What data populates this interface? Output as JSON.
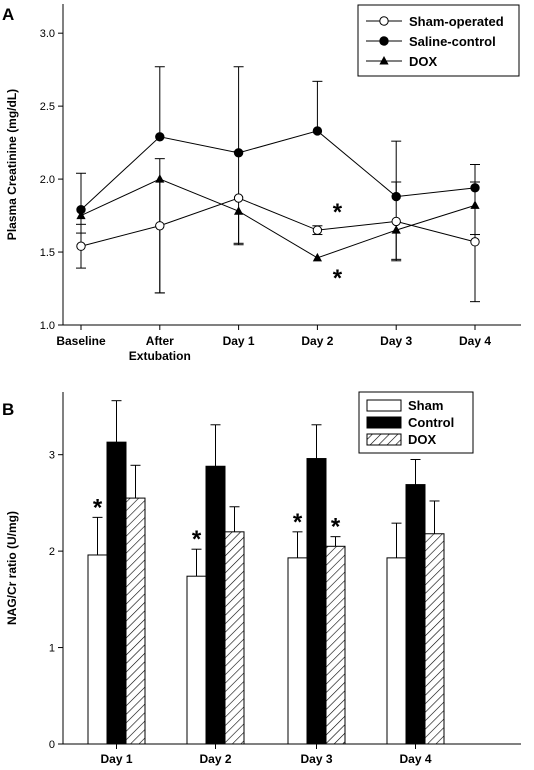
{
  "panels": [
    {
      "label": "A",
      "chart_data": {
        "type": "line",
        "title": "",
        "xlabel": "",
        "ylabel": "Plasma Creatinine (mg/dL)",
        "ylim": [
          1.0,
          3.2
        ],
        "yticks": [
          1.0,
          1.5,
          2.0,
          2.5,
          3.0
        ],
        "ytick_labels": [
          "1.0",
          "1.5",
          "2.0",
          "2.5",
          "3.0"
        ],
        "categories": [
          [
            "Baseline"
          ],
          [
            "After",
            "Extubation"
          ],
          [
            "Day 1"
          ],
          [
            "Day 2"
          ],
          [
            "Day 3"
          ],
          [
            "Day 4"
          ]
        ],
        "grid": false,
        "legend_position": "top-right",
        "series": [
          {
            "name": "Sham-operated",
            "marker": "circle-open",
            "values": [
              1.54,
              1.68,
              1.87,
              1.65,
              1.71,
              1.57
            ],
            "errors": [
              0.15,
              0.46,
              0.32,
              0.03,
              0.27,
              0.41
            ],
            "error_dir": "both"
          },
          {
            "name": "Saline-control",
            "marker": "circle-filled",
            "values": [
              1.79,
              2.29,
              2.18,
              2.33,
              1.88,
              1.94
            ],
            "errors": [
              0.25,
              0.48,
              0.59,
              0.34,
              0.38,
              0.16
            ],
            "error_dir": "up"
          },
          {
            "name": "DOX",
            "marker": "triangle-filled",
            "values": [
              1.75,
              2.0,
              1.78,
              1.46,
              1.65,
              1.82
            ],
            "errors": [
              0.12,
              0.78,
              0.22,
              0.0,
              0.2,
              0.2
            ],
            "error_dir": "down"
          }
        ],
        "annotations": [
          {
            "text": "*",
            "x_index": 3,
            "y": 1.78
          },
          {
            "text": "*",
            "x_index": 3,
            "y": 1.33
          }
        ]
      }
    },
    {
      "label": "B",
      "chart_data": {
        "type": "bar",
        "title": "",
        "xlabel": "",
        "ylabel": "NAG/Cr ratio (U/mg)",
        "ylim": [
          0,
          3.65
        ],
        "yticks": [
          0,
          1,
          2,
          3
        ],
        "ytick_labels": [
          "0",
          "1",
          "2",
          "3"
        ],
        "categories": [
          "Day 1",
          "Day 2",
          "Day 3",
          "Day 4"
        ],
        "grid": false,
        "legend_position": "top-right",
        "series": [
          {
            "name": "Sham",
            "fill": "white",
            "values": [
              1.96,
              1.74,
              1.93,
              1.93
            ],
            "errors": [
              0.39,
              0.28,
              0.27,
              0.36
            ]
          },
          {
            "name": "Control",
            "fill": "black",
            "values": [
              3.13,
              2.88,
              2.96,
              2.69
            ],
            "errors": [
              0.43,
              0.43,
              0.35,
              0.26
            ]
          },
          {
            "name": "DOX",
            "fill": "hatch",
            "values": [
              2.55,
              2.2,
              2.05,
              2.18
            ],
            "errors": [
              0.34,
              0.26,
              0.1,
              0.34
            ]
          }
        ],
        "annotations": [
          {
            "text": "*",
            "category_index": 0,
            "series_index": 0
          },
          {
            "text": "*",
            "category_index": 1,
            "series_index": 0
          },
          {
            "text": "*",
            "category_index": 2,
            "series_index": 0
          },
          {
            "text": "*",
            "category_index": 2,
            "series_index": 2
          }
        ]
      }
    }
  ]
}
